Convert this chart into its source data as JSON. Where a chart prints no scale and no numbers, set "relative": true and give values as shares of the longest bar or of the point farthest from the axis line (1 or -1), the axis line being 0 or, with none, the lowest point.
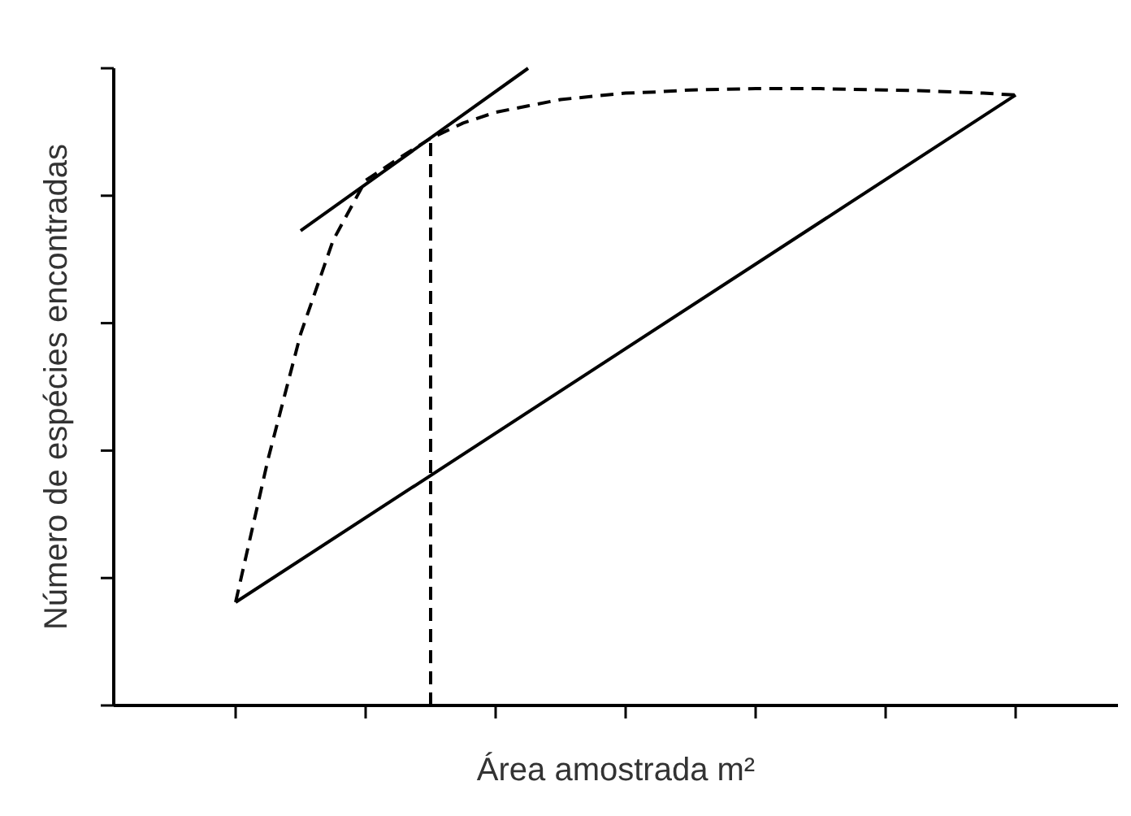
{
  "chart_data": {
    "type": "line",
    "relative": true,
    "xlabel": "Área amostrada m²",
    "ylabel": "Número de espécies encontradas",
    "grid": false,
    "marker": "none",
    "categories": [
      null,
      null,
      null,
      null,
      null,
      null,
      null,
      null,
      null,
      null,
      null,
      null,
      null,
      null,
      null,
      null,
      null,
      null,
      null,
      null,
      null,
      null,
      null,
      null,
      null
    ],
    "series": [
      {
        "color": "#000000",
        "line_style": "dashed",
        "values": [
          0.162,
          0.387,
          0.583,
          0.73,
          0.824,
          0.858,
          0.89,
          0.914,
          0.931,
          0.941,
          0.951,
          0.956,
          0.961,
          0.963,
          0.966,
          0.967,
          0.968,
          0.968,
          0.968,
          0.967,
          0.966,
          0.965,
          0.963,
          0.961,
          0.958
        ]
      },
      {
        "color": "#000000",
        "line_style": "solid",
        "values": [
          0.162,
          null,
          null,
          null,
          null,
          null,
          null,
          null,
          null,
          null,
          null,
          null,
          null,
          null,
          null,
          null,
          null,
          null,
          null,
          null,
          null,
          null,
          null,
          null,
          0.958
        ]
      },
      {
        "color": "#000000",
        "line_style": "solid",
        "values": [
          null,
          null,
          0.745,
          null,
          null,
          null,
          null,
          null,
          null,
          1,
          null,
          null,
          null,
          null,
          null,
          null,
          null,
          null,
          null,
          null,
          null,
          null,
          null,
          null,
          null
        ]
      }
    ]
  }
}
